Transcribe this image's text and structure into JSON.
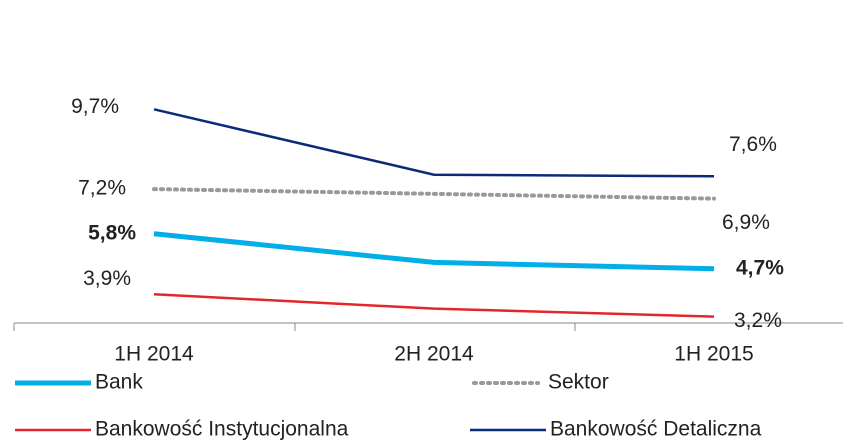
{
  "chart_data": {
    "type": "line",
    "categories": [
      "1H 2014",
      "2H 2014",
      "1H 2015"
    ],
    "ylim": [
      3,
      12
    ],
    "series": [
      {
        "name": "Bank",
        "color": "#00aee8",
        "values": [
          5.8,
          4.9,
          4.7
        ],
        "value_labels": [
          "5,8%",
          null,
          "4,7%"
        ]
      },
      {
        "name": "Sektor",
        "color": "#999999",
        "values": [
          7.2,
          7.05,
          6.9
        ],
        "value_labels": [
          "7,2%",
          null,
          "6,9%"
        ]
      },
      {
        "name": "Bankowość Instytucjonalna",
        "color": "#e3262b",
        "values": [
          3.9,
          3.45,
          3.2
        ],
        "value_labels": [
          "3,9%",
          null,
          "3,2%"
        ]
      },
      {
        "name": "Bankowość Detaliczna",
        "color": "#0b2b7a",
        "values": [
          9.7,
          7.65,
          7.6
        ],
        "value_labels": [
          "9,7%",
          null,
          "7,6%"
        ]
      }
    ]
  }
}
